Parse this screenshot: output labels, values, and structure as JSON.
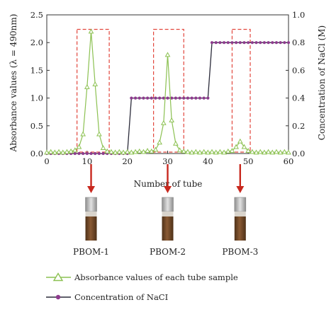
{
  "chart_data": {
    "type": "line",
    "xlabel": "Number of tube",
    "ylabel_left": "Absorbance values (λ = 490nm)",
    "ylabel_right": "Concentration of NaCl (M)",
    "xlim": [
      0,
      60
    ],
    "ylim_left": [
      0,
      2.5
    ],
    "ylim_right": [
      0,
      1.0
    ],
    "x_ticks": [
      "0",
      "10",
      "20",
      "30",
      "40",
      "50",
      "60"
    ],
    "y_left_ticks": [
      "0.0",
      "0.5",
      "1.0",
      "1.5",
      "2.0",
      "2.5"
    ],
    "y_right_ticks": [
      "0.0",
      "0.2",
      "0.4",
      "0.6",
      "0.8",
      "1.0"
    ],
    "legend_position": "bottom",
    "series": [
      {
        "name": "Absorbance values of each tube sample",
        "axis": "left",
        "color": "#8cc152",
        "marker": "triangle-open",
        "x": [
          0,
          1,
          2,
          3,
          4,
          5,
          6,
          7,
          8,
          9,
          10,
          11,
          12,
          13,
          14,
          15,
          16,
          17,
          18,
          19,
          20,
          21,
          22,
          23,
          24,
          25,
          26,
          27,
          28,
          29,
          30,
          31,
          32,
          33,
          34,
          35,
          36,
          37,
          38,
          39,
          40,
          41,
          42,
          43,
          44,
          45,
          46,
          47,
          48,
          49,
          50,
          51,
          52,
          53,
          54,
          55,
          56,
          57,
          58,
          59,
          60
        ],
        "y": [
          0.02,
          0.03,
          0.02,
          0.03,
          0.02,
          0.03,
          0.04,
          0.06,
          0.12,
          0.35,
          1.2,
          2.2,
          1.25,
          0.35,
          0.1,
          0.04,
          0.03,
          0.02,
          0.03,
          0.02,
          0.03,
          0.02,
          0.03,
          0.04,
          0.03,
          0.05,
          0.04,
          0.07,
          0.2,
          0.55,
          1.78,
          0.6,
          0.18,
          0.06,
          0.04,
          0.03,
          0.02,
          0.03,
          0.02,
          0.03,
          0.02,
          0.03,
          0.02,
          0.03,
          0.02,
          0.04,
          0.05,
          0.12,
          0.22,
          0.12,
          0.05,
          0.03,
          0.02,
          0.03,
          0.02,
          0.03,
          0.02,
          0.03,
          0.02,
          0.03,
          0.02
        ]
      },
      {
        "name": "Concentration of NaCI",
        "axis": "right",
        "color": "#2b2b3a",
        "marker_color": "#8e3b8e",
        "marker": "dot",
        "x": [
          0,
          1,
          2,
          3,
          4,
          5,
          6,
          7,
          8,
          9,
          10,
          11,
          12,
          13,
          14,
          15,
          16,
          17,
          18,
          19,
          20,
          21,
          22,
          23,
          24,
          25,
          26,
          27,
          28,
          29,
          30,
          31,
          32,
          33,
          34,
          35,
          36,
          37,
          38,
          39,
          40,
          41,
          42,
          43,
          44,
          45,
          46,
          47,
          48,
          49,
          50,
          51,
          52,
          53,
          54,
          55,
          56,
          57,
          58,
          59,
          60
        ],
        "y": [
          0,
          0,
          0,
          0,
          0,
          0,
          0,
          0,
          0,
          0,
          0,
          0,
          0,
          0,
          0,
          0,
          0,
          0,
          0,
          0,
          0,
          0.4,
          0.4,
          0.4,
          0.4,
          0.4,
          0.4,
          0.4,
          0.4,
          0.4,
          0.4,
          0.4,
          0.4,
          0.4,
          0.4,
          0.4,
          0.4,
          0.4,
          0.4,
          0.4,
          0.4,
          0.8,
          0.8,
          0.8,
          0.8,
          0.8,
          0.8,
          0.8,
          0.8,
          0.8,
          0.8,
          0.8,
          0.8,
          0.8,
          0.8,
          0.8,
          0.8,
          0.8,
          0.8,
          0.8,
          0.8
        ]
      }
    ],
    "peak_boxes": [
      {
        "x0": 7.5,
        "x1": 15.5,
        "y0": 0,
        "y1": 2.2
      },
      {
        "x0": 26.5,
        "x1": 34,
        "y0": 0,
        "y1": 2.2
      },
      {
        "x0": 46,
        "x1": 50.5,
        "y0": 0,
        "y1": 2.2
      }
    ],
    "samples": [
      {
        "label": "PBOM-1",
        "tube": 11
      },
      {
        "label": "PBOM-2",
        "tube": 30
      },
      {
        "label": "PBOM-3",
        "tube": 48
      }
    ],
    "colors": {
      "box": "#e2463c",
      "arrow": "#c8281e",
      "tube_liquid": "#6b4528",
      "tube_cap": "#b3b3b3"
    }
  }
}
